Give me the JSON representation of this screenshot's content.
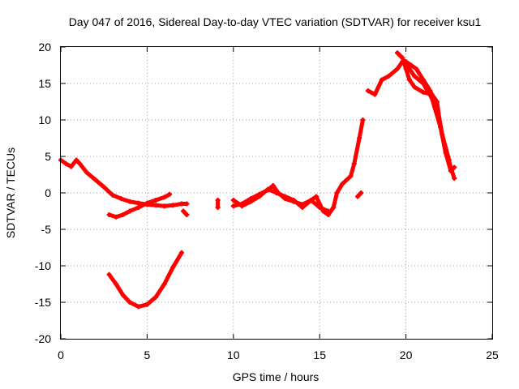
{
  "chart_data": {
    "type": "line",
    "title": "Day 047 of 2016, Sidereal Day-to-day VTEC variation (SDTVAR) for receiver ksu1",
    "xlabel": "GPS time / hours",
    "ylabel": "SDTVAR / TECUs",
    "xlim": [
      0,
      25
    ],
    "ylim": [
      -20,
      20
    ],
    "xticks": [
      0,
      5,
      10,
      15,
      20,
      25
    ],
    "yticks": [
      -20,
      -15,
      -10,
      -5,
      0,
      5,
      10,
      15,
      20
    ],
    "grid": true,
    "series_color": "#ff0000",
    "series": [
      {
        "name": "arc-1",
        "points": [
          [
            0.0,
            4.5
          ],
          [
            0.3,
            4.0
          ],
          [
            0.6,
            3.6
          ],
          [
            0.9,
            4.5
          ],
          [
            1.1,
            4.0
          ],
          [
            1.5,
            2.8
          ],
          [
            2.0,
            1.8
          ],
          [
            2.5,
            0.8
          ],
          [
            3.0,
            -0.3
          ],
          [
            3.5,
            -0.8
          ],
          [
            4.0,
            -1.2
          ],
          [
            4.5,
            -1.4
          ],
          [
            5.0,
            -1.6
          ],
          [
            5.5,
            -1.7
          ],
          [
            6.0,
            -1.8
          ],
          [
            6.5,
            -1.7
          ],
          [
            7.0,
            -1.5
          ],
          [
            7.3,
            -1.5
          ]
        ]
      },
      {
        "name": "arc-2",
        "points": [
          [
            2.8,
            -3.0
          ],
          [
            3.2,
            -3.3
          ],
          [
            3.6,
            -3.0
          ],
          [
            4.0,
            -2.5
          ],
          [
            4.5,
            -2.0
          ],
          [
            5.0,
            -1.4
          ],
          [
            5.5,
            -1.0
          ],
          [
            6.0,
            -0.6
          ],
          [
            6.3,
            -0.2
          ]
        ]
      },
      {
        "name": "arc-3",
        "points": [
          [
            2.8,
            -11.2
          ],
          [
            3.2,
            -12.5
          ],
          [
            3.6,
            -14.0
          ],
          [
            4.0,
            -15.0
          ],
          [
            4.5,
            -15.6
          ],
          [
            5.0,
            -15.3
          ],
          [
            5.5,
            -14.3
          ],
          [
            6.0,
            -12.5
          ],
          [
            6.5,
            -10.2
          ],
          [
            7.0,
            -8.2
          ]
        ]
      },
      {
        "name": "arc-4",
        "points": [
          [
            7.1,
            -2.5
          ],
          [
            7.3,
            -3.0
          ]
        ]
      },
      {
        "name": "arc-5",
        "points": [
          [
            9.1,
            -1.0
          ],
          [
            9.1,
            -2.0
          ]
        ]
      },
      {
        "name": "arc-6",
        "points": [
          [
            10.0,
            -1.8
          ],
          [
            10.5,
            -1.5
          ],
          [
            11.0,
            -0.8
          ],
          [
            11.5,
            -0.2
          ],
          [
            12.0,
            0.4
          ],
          [
            12.3,
            1.0
          ],
          [
            12.6,
            0.0
          ],
          [
            13.0,
            -0.8
          ],
          [
            13.5,
            -1.2
          ],
          [
            14.0,
            -1.6
          ],
          [
            14.5,
            -1.0
          ],
          [
            14.8,
            -0.5
          ],
          [
            15.2,
            -2.5
          ],
          [
            15.5,
            -3.0
          ],
          [
            15.8,
            -2.0
          ],
          [
            16.0,
            0.0
          ],
          [
            16.3,
            1.2
          ],
          [
            16.8,
            2.3
          ],
          [
            17.0,
            4.0
          ],
          [
            17.3,
            7.5
          ],
          [
            17.5,
            10.0
          ]
        ]
      },
      {
        "name": "arc-7",
        "points": [
          [
            10.0,
            -1.0
          ],
          [
            10.5,
            -1.8
          ],
          [
            11.0,
            -1.2
          ],
          [
            11.5,
            -0.5
          ],
          [
            12.0,
            0.5
          ],
          [
            12.5,
            0.0
          ],
          [
            13.0,
            -0.5
          ],
          [
            13.5,
            -1.0
          ],
          [
            14.0,
            -2.0
          ],
          [
            14.5,
            -1.0
          ],
          [
            15.0,
            -2.0
          ],
          [
            15.5,
            -2.5
          ]
        ]
      },
      {
        "name": "arc-8",
        "points": [
          [
            17.4,
            -0.0
          ],
          [
            17.2,
            -0.5
          ]
        ]
      },
      {
        "name": "arc-9",
        "points": [
          [
            17.8,
            14.0
          ],
          [
            18.2,
            13.5
          ],
          [
            18.6,
            15.5
          ],
          [
            19.0,
            16.0
          ],
          [
            19.5,
            17.0
          ],
          [
            19.8,
            18.0
          ],
          [
            20.2,
            17.0
          ],
          [
            20.5,
            16.0
          ],
          [
            21.0,
            15.0
          ],
          [
            21.5,
            13.0
          ],
          [
            22.0,
            9.0
          ],
          [
            22.3,
            6.0
          ],
          [
            22.6,
            3.5
          ],
          [
            22.8,
            2.0
          ]
        ]
      },
      {
        "name": "arc-10",
        "points": [
          [
            19.5,
            19.2
          ],
          [
            19.8,
            18.5
          ],
          [
            20.0,
            17.0
          ],
          [
            20.2,
            15.5
          ],
          [
            20.5,
            14.5
          ],
          [
            21.0,
            13.8
          ],
          [
            21.5,
            13.5
          ],
          [
            21.8,
            12.5
          ],
          [
            22.0,
            9.0
          ],
          [
            22.3,
            5.5
          ],
          [
            22.6,
            3.0
          ],
          [
            22.8,
            3.5
          ]
        ]
      },
      {
        "name": "arc-11",
        "points": [
          [
            20.0,
            18.0
          ],
          [
            20.3,
            17.5
          ],
          [
            20.6,
            17.0
          ],
          [
            21.0,
            15.5
          ],
          [
            21.4,
            14.0
          ],
          [
            21.8,
            12.0
          ],
          [
            22.1,
            8.0
          ],
          [
            22.5,
            4.5
          ]
        ]
      }
    ]
  }
}
